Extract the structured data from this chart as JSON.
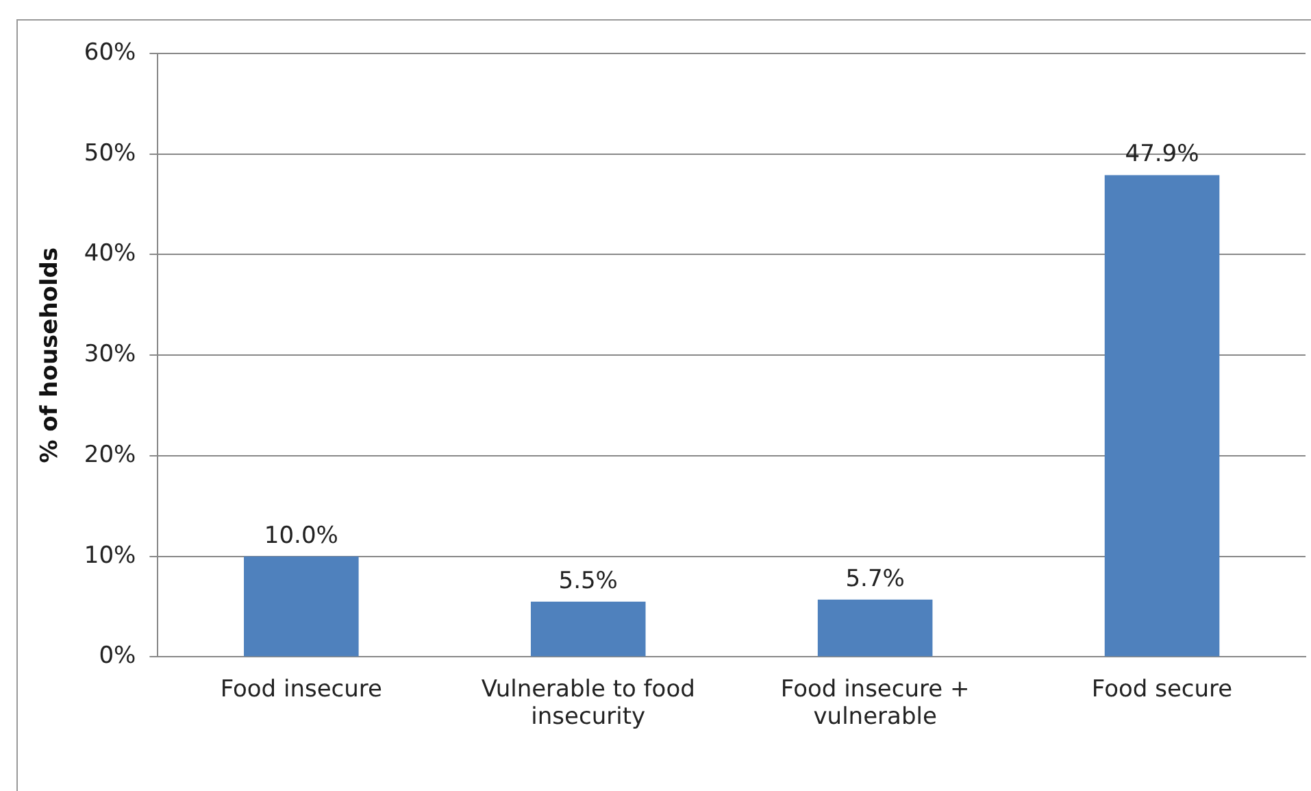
{
  "chart_data": {
    "type": "bar",
    "ylabel": "% of households",
    "categories": [
      "Food insecure",
      "Vulnerable to food insecurity",
      "Food insecure + vulnerable",
      "Food secure"
    ],
    "values": [
      10.0,
      5.5,
      5.7,
      47.9
    ],
    "color": "#4f81bd",
    "value_labels": [
      "10.0%",
      "5.5%",
      "5.7%",
      "47.9%"
    ],
    "ylim": [
      0,
      60
    ],
    "yticks": [
      {
        "value": 0,
        "label": "0%"
      },
      {
        "value": 10,
        "label": "10%"
      },
      {
        "value": 20,
        "label": "20%"
      },
      {
        "value": 30,
        "label": "30%"
      },
      {
        "value": 40,
        "label": "40%"
      },
      {
        "value": 50,
        "label": "50%"
      },
      {
        "value": 60,
        "label": "60%"
      }
    ],
    "grid": "y",
    "legend": false
  }
}
